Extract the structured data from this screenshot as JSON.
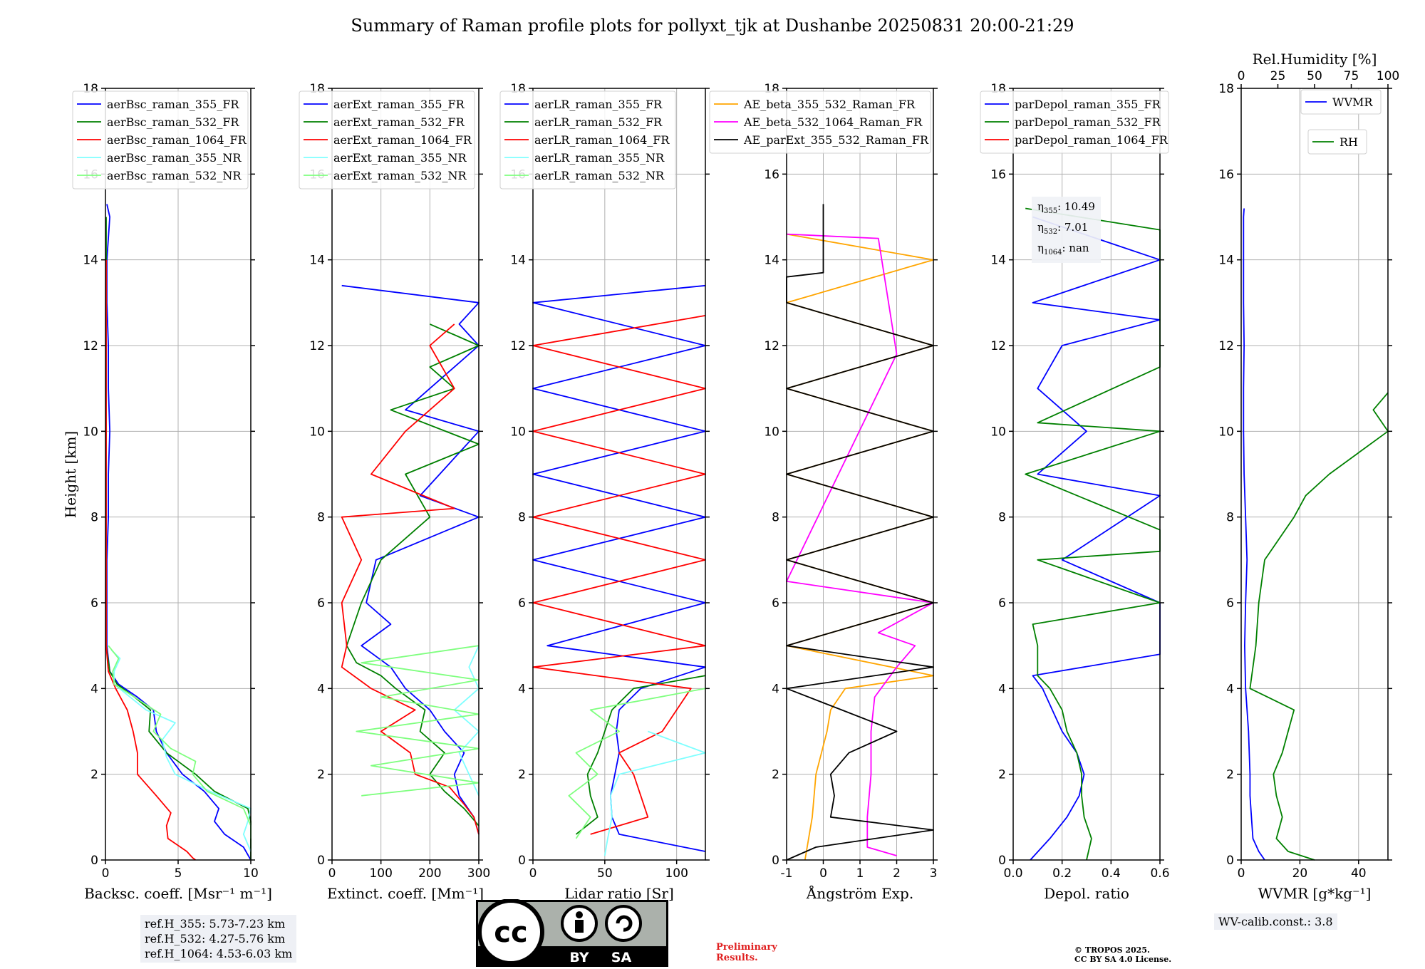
{
  "figure": {
    "title": "Summary of Raman profile plots for pollyxt_tjk at Dushanbe 20250831 20:00-21:29",
    "ylabel": "Height [km]",
    "ref_heights": [
      "ref.H_355: 5.73-7.23 km",
      "ref.H_532: 4.27-5.76 km",
      "ref.H_1064: 4.53-6.03 km"
    ],
    "wv_calib": "WV-calib.const.: 3.8",
    "preliminary": [
      "Preliminary",
      "Results."
    ],
    "copyright": [
      "© TROPOS 2025.",
      "CC BY SA 4.0 License."
    ],
    "license_badge": [
      "BY",
      "SA"
    ],
    "colors": {
      "blue": "#0000ff",
      "green": "#008000",
      "red": "#ff0000",
      "cyan": "#7fffff",
      "lightgreen": "#7fff7f",
      "orange": "#ffa500",
      "magenta": "#ff00ff",
      "black": "#000000"
    }
  },
  "eta": {
    "eta355": "10.49",
    "eta532": "7.01",
    "eta1064": "nan"
  },
  "chart_data": [
    {
      "type": "line",
      "xlabel": "Backsc. coeff. [Msr⁻¹ m⁻¹]",
      "xlim": [
        0,
        10
      ],
      "xticks": [
        0,
        5,
        10
      ],
      "ylim": [
        0,
        18
      ],
      "yticks": [
        0,
        2,
        4,
        6,
        8,
        10,
        12,
        14,
        16,
        18
      ],
      "legend": "top-left",
      "series": [
        {
          "name": "aerBsc_raman_355_FR",
          "color": "#0000ff",
          "y": [
            0,
            0.3,
            0.6,
            0.9,
            1.2,
            1.6,
            2,
            2.5,
            3,
            3.5,
            3.8,
            4.1,
            4.4,
            5,
            6,
            7,
            8,
            9,
            10,
            11,
            12,
            13,
            14,
            15,
            15.3
          ],
          "x": [
            10,
            9.5,
            8.2,
            7.5,
            7.8,
            6.8,
            5.3,
            4.2,
            3.5,
            3.3,
            2.2,
            0.9,
            0.3,
            0.1,
            0.1,
            0.1,
            0.2,
            0.2,
            0.3,
            0.2,
            0.2,
            0.1,
            0.1,
            0.3,
            0.1
          ]
        },
        {
          "name": "aerBsc_raman_532_FR",
          "color": "#008000",
          "y": [
            0,
            0.3,
            0.6,
            0.9,
            1.2,
            1.6,
            2,
            2.5,
            3,
            3.5,
            3.8,
            4.1,
            4.4,
            5,
            6,
            8,
            10,
            12,
            14,
            15
          ],
          "x": [
            10,
            10,
            10,
            10,
            9.8,
            7.5,
            6.2,
            4.2,
            3,
            3.1,
            2,
            0.8,
            0.3,
            0.05,
            0.05,
            0.05,
            0.05,
            0.05,
            0.05,
            0.05
          ]
        },
        {
          "name": "aerBsc_raman_1064_FR",
          "color": "#ff0000",
          "y": [
            0,
            0.05,
            0.2,
            0.5,
            0.8,
            1.1,
            1.5,
            2,
            2.5,
            3,
            3.5,
            4,
            4.4,
            5,
            6,
            8,
            10,
            12,
            14
          ],
          "x": [
            6.2,
            6,
            5.6,
            4.3,
            4.2,
            4.5,
            3.5,
            2.2,
            2.2,
            1.9,
            1.5,
            0.7,
            0.2,
            0.05,
            0.05,
            0.05,
            0.05,
            0.05,
            0.05
          ]
        },
        {
          "name": "aerBsc_raman_355_NR",
          "color": "#7fffff",
          "y": [
            0.2,
            0.6,
            0.9,
            1.2,
            1.6,
            2,
            2.4,
            2.8,
            3.2,
            3.5,
            3.8,
            4.1,
            4.4,
            4.7,
            4.9
          ],
          "x": [
            10,
            9.5,
            9.8,
            10,
            7.2,
            4.8,
            4.2,
            3.9,
            4.8,
            2.8,
            1.7,
            0.6,
            0.6,
            1.0,
            0.4
          ]
        },
        {
          "name": "aerBsc_raman_532_NR",
          "color": "#7fff7f",
          "y": [
            0.5,
            0.8,
            1.2,
            1.6,
            2,
            2.3,
            2.6,
            3,
            3.4,
            3.8,
            4.1,
            4.4,
            4.7,
            5
          ],
          "x": [
            10,
            10,
            9.5,
            7,
            6,
            6.2,
            4.5,
            3.3,
            3.8,
            2,
            0.6,
            0.5,
            0.9,
            0.2
          ]
        }
      ]
    },
    {
      "type": "line",
      "xlabel": "Extinct. coeff. [Mm⁻¹]",
      "xlim": [
        0,
        300
      ],
      "xticks": [
        0,
        100,
        200,
        300
      ],
      "ylim": [
        0,
        18
      ],
      "yticks": [
        0,
        2,
        4,
        6,
        8,
        10,
        12,
        14,
        16,
        18
      ],
      "legend": "top-left",
      "series": [
        {
          "name": "aerExt_raman_355_FR",
          "color": "#0000ff",
          "y": [
            0.6,
            1,
            1.5,
            2,
            2.5,
            3,
            3.5,
            4,
            4.5,
            5,
            5.5,
            6,
            7,
            8,
            8.5,
            9,
            9.5,
            10,
            10.5,
            11,
            11.5,
            12,
            12.5,
            13,
            13.4
          ],
          "x": [
            300,
            290,
            260,
            250,
            270,
            230,
            200,
            150,
            120,
            60,
            120,
            70,
            90,
            300,
            180,
            220,
            260,
            300,
            150,
            200,
            250,
            300,
            260,
            300,
            20
          ]
        },
        {
          "name": "aerExt_raman_532_FR",
          "color": "#008000",
          "y": [
            0.8,
            1.2,
            1.6,
            2,
            2.5,
            3,
            3.5,
            4,
            4.3,
            4.6,
            5,
            6,
            7,
            8,
            9,
            9.7,
            10.5,
            11,
            11.5,
            12,
            12.5
          ],
          "x": [
            300,
            270,
            230,
            200,
            230,
            180,
            190,
            130,
            100,
            50,
            30,
            60,
            100,
            200,
            150,
            300,
            120,
            250,
            200,
            300,
            200
          ]
        },
        {
          "name": "aerExt_raman_1064_FR",
          "color": "#ff0000",
          "y": [
            0.6,
            1,
            1.3,
            1.7,
            2,
            2.5,
            3,
            3.5,
            4,
            4.5,
            5,
            6,
            7,
            8,
            8.2,
            9,
            10,
            11,
            12,
            12.5
          ],
          "x": [
            300,
            290,
            270,
            240,
            170,
            160,
            100,
            170,
            80,
            20,
            30,
            20,
            60,
            20,
            250,
            80,
            150,
            250,
            200,
            250
          ]
        },
        {
          "name": "aerExt_raman_355_NR",
          "color": "#7fffff",
          "y": [
            1.5,
            2,
            2.5,
            3,
            3.5,
            4,
            4.5,
            5
          ],
          "x": [
            300,
            280,
            260,
            300,
            250,
            300,
            280,
            300
          ]
        },
        {
          "name": "aerExt_raman_532_NR",
          "color": "#7fff7f",
          "y": [
            1.5,
            1.8,
            2.2,
            2.6,
            3,
            3.4,
            3.8,
            4.2,
            4.6,
            5
          ],
          "x": [
            60,
            300,
            80,
            300,
            50,
            300,
            100,
            300,
            60,
            300
          ]
        }
      ]
    },
    {
      "type": "line",
      "xlabel": "Lidar ratio [Sr]",
      "xlim": [
        0,
        120
      ],
      "xticks": [
        0,
        50,
        100
      ],
      "ylim": [
        0,
        18
      ],
      "yticks": [
        0,
        2,
        4,
        6,
        8,
        10,
        12,
        14,
        16,
        18
      ],
      "legend": "top-left",
      "series": [
        {
          "name": "aerLR_raman_355_FR",
          "color": "#0000ff",
          "y": [
            0.2,
            0.6,
            1,
            1.5,
            2,
            2.5,
            3,
            3.5,
            4,
            4.5,
            5,
            6,
            7,
            8,
            9,
            10,
            11,
            12,
            13,
            13.4
          ],
          "x": [
            120,
            60,
            55,
            54,
            57,
            60,
            58,
            60,
            75,
            120,
            10,
            120,
            0,
            120,
            0,
            120,
            0,
            120,
            0,
            120
          ]
        },
        {
          "name": "aerLR_raman_532_FR",
          "color": "#008000",
          "y": [
            0.6,
            1,
            1.5,
            2,
            2.5,
            3,
            3.5,
            4,
            4.3
          ],
          "x": [
            30,
            45,
            40,
            38,
            45,
            50,
            55,
            70,
            120
          ]
        },
        {
          "name": "aerLR_raman_1064_FR",
          "color": "#ff0000",
          "y": [
            0.6,
            1,
            1.5,
            2,
            2.5,
            3,
            3.5,
            4,
            4.5,
            5,
            6,
            7,
            8,
            9,
            10,
            11,
            12,
            12.7
          ],
          "x": [
            40,
            80,
            75,
            70,
            60,
            90,
            100,
            110,
            0,
            120,
            0,
            120,
            0,
            120,
            0,
            120,
            0,
            120
          ]
        },
        {
          "name": "aerLR_raman_355_NR",
          "color": "#7fffff",
          "y": [
            0.1,
            0.5,
            1,
            1.5,
            2,
            2.5,
            3
          ],
          "x": [
            50,
            52,
            55,
            54,
            60,
            120,
            80
          ]
        },
        {
          "name": "aerLR_raman_532_NR",
          "color": "#7fff7f",
          "y": [
            0.5,
            1,
            1.5,
            2,
            2.5,
            3,
            3.5,
            4
          ],
          "x": [
            30,
            40,
            25,
            45,
            30,
            60,
            40,
            120
          ]
        }
      ]
    },
    {
      "type": "line",
      "xlabel": "Ångström Exp.",
      "xlim": [
        -1,
        3
      ],
      "xticks": [
        -1,
        0,
        1,
        2,
        3
      ],
      "ylim": [
        0,
        18
      ],
      "yticks": [
        0,
        2,
        4,
        6,
        8,
        10,
        12,
        14,
        16,
        18
      ],
      "legend": "top-right",
      "series": [
        {
          "name": "AE_beta_355_532_Raman_FR",
          "color": "#ffa500",
          "y": [
            0,
            0.5,
            1,
            2,
            3,
            3.5,
            4,
            4.3,
            5,
            6,
            7,
            8,
            9,
            10,
            11,
            12,
            13,
            14,
            14.6
          ],
          "x": [
            -0.5,
            -0.4,
            -0.3,
            -0.2,
            0.1,
            0.2,
            0.6,
            3,
            -1,
            3,
            -1,
            3,
            -1,
            3,
            -1,
            3,
            -1,
            3,
            -1
          ]
        },
        {
          "name": "AE_beta_532_1064_Raman_FR",
          "color": "#ff00ff",
          "y": [
            0.1,
            0.3,
            1,
            2,
            3,
            3.8,
            4.5,
            5,
            5.3,
            6,
            6.5,
            11.8,
            14.5,
            14.6
          ],
          "x": [
            2,
            1.2,
            1.2,
            1.3,
            1.3,
            1.4,
            2,
            2.5,
            1.5,
            3,
            -1,
            2,
            1.5,
            -1
          ]
        },
        {
          "name": "AE_parExt_355_532_Raman_FR",
          "color": "#000000",
          "y": [
            0,
            0.3,
            0.7,
            1,
            1.5,
            2,
            2.5,
            3,
            3.5,
            4,
            4.5,
            5,
            6,
            7,
            8,
            9,
            10,
            11,
            12,
            13,
            13.6,
            13.7,
            15.3
          ],
          "x": [
            -1,
            -0.2,
            3,
            0.2,
            0.3,
            0.2,
            0.7,
            2,
            0.5,
            -1,
            3,
            -1,
            3,
            -1,
            3,
            -1,
            3,
            -1,
            3,
            -1,
            -1,
            0,
            0
          ]
        }
      ]
    },
    {
      "type": "line",
      "xlabel": "Depol. ratio",
      "xlim": [
        0,
        0.6
      ],
      "xticks": [
        0.0,
        0.2,
        0.4,
        0.6
      ],
      "ylim": [
        0,
        18
      ],
      "yticks": [
        0,
        2,
        4,
        6,
        8,
        10,
        12,
        14,
        16,
        18
      ],
      "legend": "top-left",
      "series": [
        {
          "name": "parDepol_raman_355_FR",
          "color": "#0000ff",
          "y": [
            0,
            0.5,
            1,
            1.5,
            2,
            2.5,
            3,
            3.5,
            4,
            4.3,
            4.8,
            5.5,
            6,
            7,
            8.5,
            9,
            10,
            11,
            12,
            12.6,
            13,
            14,
            15
          ],
          "x": [
            0.07,
            0.15,
            0.22,
            0.27,
            0.29,
            0.26,
            0.2,
            0.16,
            0.12,
            0.08,
            0.6,
            0.6,
            0.6,
            0.2,
            0.6,
            0.1,
            0.3,
            0.1,
            0.2,
            0.6,
            0.08,
            0.6,
            0.08
          ]
        },
        {
          "name": "parDepol_raman_532_FR",
          "color": "#008000",
          "y": [
            0,
            0.5,
            1,
            1.5,
            2,
            2.5,
            3,
            3.5,
            4,
            4.3,
            5,
            5.5,
            6,
            7,
            7.2,
            7.7,
            9,
            10,
            10.2,
            11.5,
            12,
            14.7,
            15.2
          ],
          "x": [
            0.3,
            0.32,
            0.29,
            0.28,
            0.28,
            0.26,
            0.22,
            0.2,
            0.15,
            0.1,
            0.1,
            0.08,
            0.6,
            0.1,
            0.6,
            0.6,
            0.05,
            0.6,
            0.1,
            0.6,
            0.6,
            0.6,
            0.05
          ]
        },
        {
          "name": "parDepol_raman_1064_FR",
          "color": "#ff0000",
          "y": [],
          "x": []
        }
      ]
    },
    {
      "type": "line",
      "xlabel": "WVMR [g*kg⁻¹]",
      "xlim": [
        0,
        50
      ],
      "xticks": [
        0,
        20,
        40
      ],
      "ylim": [
        0,
        18
      ],
      "yticks": [
        0,
        2,
        4,
        6,
        8,
        10,
        12,
        14,
        16,
        18
      ],
      "top_axis": {
        "label": "Rel.Humidity [%]",
        "xlim": [
          0,
          100
        ],
        "xticks": [
          0,
          25,
          50,
          75,
          100
        ]
      },
      "legend": "top-right",
      "series": [
        {
          "name": "WVMR",
          "color": "#0000ff",
          "y": [
            0,
            0.2,
            0.5,
            1,
            1.5,
            2,
            3,
            4,
            5,
            6,
            7,
            8,
            9,
            10,
            11,
            12,
            13,
            14,
            15,
            15.2
          ],
          "x": [
            8,
            6,
            4,
            3.5,
            3,
            3,
            2.5,
            1.5,
            1.2,
            1.5,
            2,
            1.5,
            1,
            0.8,
            0.8,
            1,
            0.8,
            0.8,
            0.8,
            1
          ]
        },
        {
          "name": "RH",
          "color": "#008000",
          "y": [
            0,
            0.2,
            0.5,
            1,
            1.5,
            2,
            2.5,
            3,
            3.5,
            4,
            4.5,
            5,
            6,
            7,
            8,
            8.5,
            9,
            9.5,
            10,
            10.5,
            10.9
          ],
          "x": [
            25,
            16,
            12,
            14,
            12,
            11,
            14,
            16,
            18,
            3,
            4,
            5,
            6,
            8,
            18,
            22,
            30,
            40,
            50,
            45,
            50
          ]
        }
      ]
    }
  ]
}
